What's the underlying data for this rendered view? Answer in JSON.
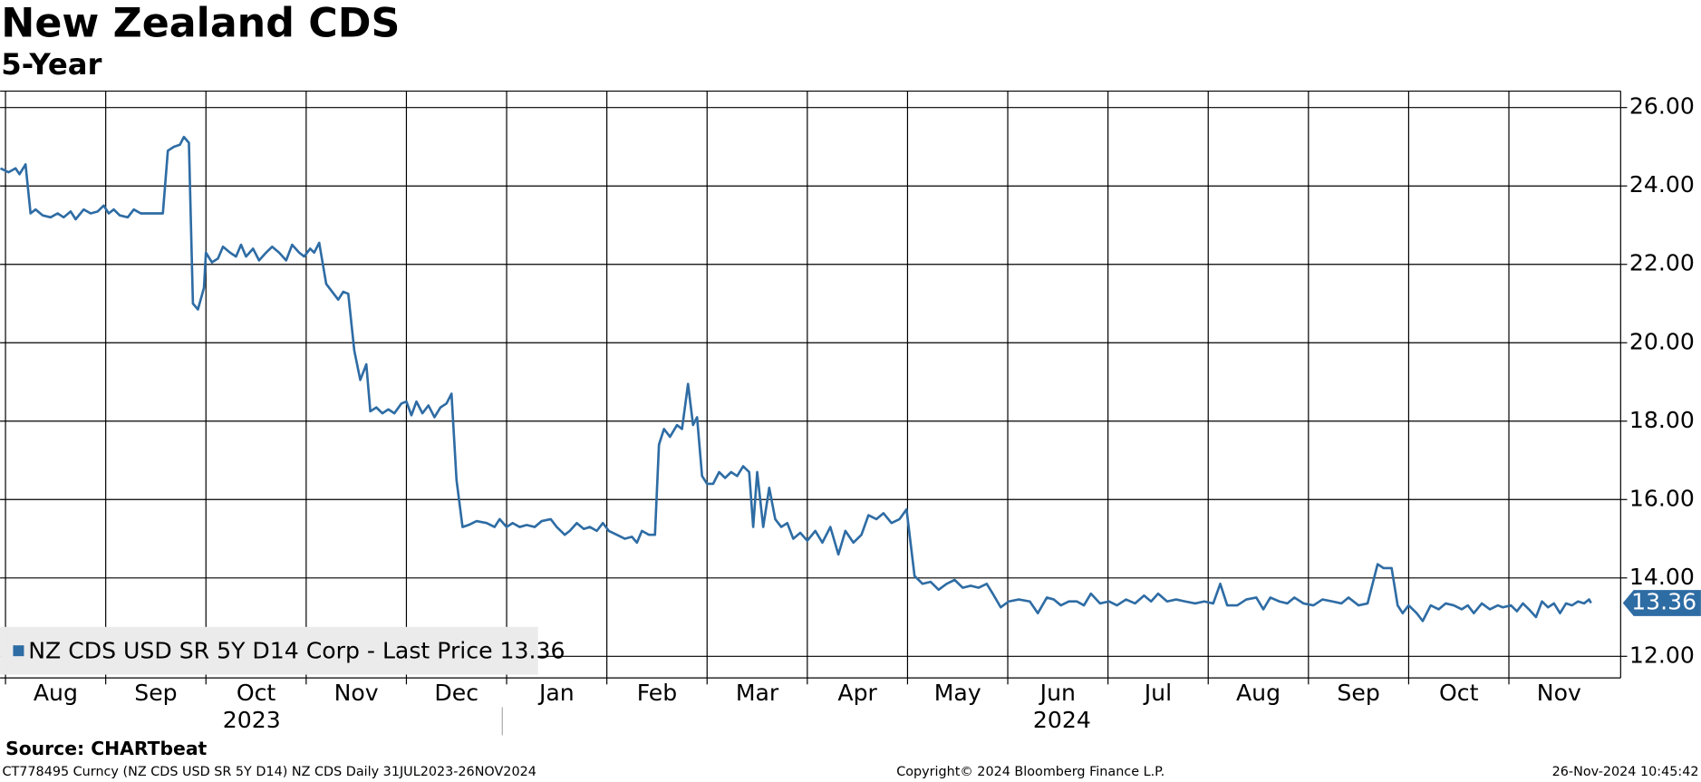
{
  "chart_data": {
    "type": "line",
    "title": "New Zealand CDS",
    "subtitle": "5-Year",
    "x": [
      -0.05,
      0.03,
      0.1,
      0.14,
      0.2,
      0.25,
      0.3,
      0.37,
      0.45,
      0.52,
      0.58,
      0.65,
      0.7,
      0.78,
      0.85,
      0.92,
      0.98,
      1.03,
      1.08,
      1.14,
      1.22,
      1.28,
      1.35,
      1.45,
      1.57,
      1.62,
      1.68,
      1.74,
      1.78,
      1.83,
      1.87,
      1.92,
      1.98,
      2.0,
      2.06,
      2.12,
      2.17,
      2.24,
      2.3,
      2.35,
      2.4,
      2.47,
      2.53,
      2.6,
      2.66,
      2.73,
      2.8,
      2.86,
      2.93,
      2.98,
      3.04,
      3.08,
      3.13,
      3.2,
      3.26,
      3.32,
      3.37,
      3.42,
      3.48,
      3.54,
      3.6,
      3.64,
      3.7,
      3.76,
      3.82,
      3.88,
      3.95,
      4.0,
      4.05,
      4.1,
      4.16,
      4.22,
      4.28,
      4.34,
      4.4,
      4.45,
      4.5,
      4.56,
      4.62,
      4.7,
      4.8,
      4.88,
      4.93,
      5.0,
      5.06,
      5.13,
      5.2,
      5.28,
      5.35,
      5.44,
      5.5,
      5.58,
      5.63,
      5.7,
      5.77,
      5.83,
      5.9,
      5.96,
      6.02,
      6.1,
      6.18,
      6.25,
      6.3,
      6.35,
      6.42,
      6.48,
      6.52,
      6.57,
      6.63,
      6.7,
      6.75,
      6.81,
      6.86,
      6.9,
      6.95,
      7.0,
      7.06,
      7.12,
      7.18,
      7.24,
      7.3,
      7.36,
      7.42,
      7.46,
      7.5,
      7.56,
      7.62,
      7.68,
      7.74,
      7.8,
      7.86,
      7.93,
      8.0,
      8.08,
      8.15,
      8.23,
      8.31,
      8.38,
      8.46,
      8.54,
      8.61,
      8.69,
      8.76,
      8.84,
      8.92,
      8.99,
      9.07,
      9.15,
      9.23,
      9.31,
      9.39,
      9.47,
      9.55,
      9.63,
      9.71,
      9.79,
      9.85,
      9.93,
      10.01,
      10.11,
      10.22,
      10.3,
      10.39,
      10.46,
      10.53,
      10.61,
      10.69,
      10.76,
      10.83,
      10.92,
      11.01,
      11.09,
      11.18,
      11.27,
      11.36,
      11.43,
      11.5,
      11.59,
      11.68,
      11.77,
      11.87,
      11.96,
      12.05,
      12.12,
      12.19,
      12.29,
      12.38,
      12.48,
      12.55,
      12.62,
      12.71,
      12.79,
      12.86,
      12.95,
      13.05,
      13.14,
      13.24,
      13.33,
      13.4,
      13.5,
      13.59,
      13.69,
      13.75,
      13.83,
      13.89,
      13.94,
      14.0,
      14.08,
      14.14,
      14.22,
      14.3,
      14.37,
      14.45,
      14.53,
      14.59,
      14.65,
      14.73,
      14.81,
      14.89,
      14.94,
      15.02,
      15.08,
      15.14,
      15.2,
      15.27,
      15.33,
      15.39,
      15.45,
      15.51,
      15.57,
      15.63,
      15.69,
      15.75,
      15.8,
      15.82
    ],
    "series": [
      {
        "name": "NZ CDS USD SR 5Y D14 Corp - Last Price 13.36",
        "color": "#2e6ca4",
        "values": [
          24.45,
          24.35,
          24.45,
          24.3,
          24.55,
          23.3,
          23.4,
          23.25,
          23.2,
          23.3,
          23.2,
          23.35,
          23.15,
          23.4,
          23.3,
          23.35,
          23.5,
          23.3,
          23.4,
          23.25,
          23.2,
          23.4,
          23.3,
          23.3,
          23.3,
          24.9,
          25.0,
          25.05,
          25.25,
          25.1,
          21.0,
          20.85,
          21.4,
          22.3,
          22.05,
          22.15,
          22.45,
          22.3,
          22.2,
          22.5,
          22.2,
          22.4,
          22.1,
          22.3,
          22.45,
          22.3,
          22.1,
          22.5,
          22.3,
          22.2,
          22.4,
          22.3,
          22.55,
          21.5,
          21.3,
          21.1,
          21.3,
          21.25,
          19.8,
          19.05,
          19.45,
          18.25,
          18.35,
          18.2,
          18.3,
          18.2,
          18.45,
          18.5,
          18.15,
          18.5,
          18.2,
          18.4,
          18.1,
          18.35,
          18.45,
          18.7,
          16.5,
          15.3,
          15.35,
          15.45,
          15.4,
          15.3,
          15.5,
          15.3,
          15.4,
          15.3,
          15.35,
          15.3,
          15.45,
          15.5,
          15.3,
          15.1,
          15.2,
          15.4,
          15.25,
          15.3,
          15.2,
          15.4,
          15.2,
          15.1,
          15.0,
          15.05,
          14.9,
          15.2,
          15.1,
          15.1,
          17.4,
          17.8,
          17.6,
          17.9,
          17.8,
          18.95,
          17.9,
          18.1,
          16.6,
          16.4,
          16.4,
          16.7,
          16.55,
          16.7,
          16.6,
          16.85,
          16.7,
          15.3,
          16.7,
          15.3,
          16.3,
          15.5,
          15.3,
          15.4,
          15.0,
          15.15,
          14.95,
          15.2,
          14.9,
          15.3,
          14.6,
          15.2,
          14.9,
          15.1,
          15.6,
          15.5,
          15.65,
          15.4,
          15.5,
          15.75,
          14.05,
          13.85,
          13.9,
          13.7,
          13.85,
          13.95,
          13.75,
          13.8,
          13.75,
          13.85,
          13.6,
          13.25,
          13.4,
          13.45,
          13.4,
          13.1,
          13.5,
          13.45,
          13.3,
          13.4,
          13.4,
          13.3,
          13.6,
          13.35,
          13.4,
          13.3,
          13.45,
          13.35,
          13.55,
          13.4,
          13.6,
          13.4,
          13.45,
          13.4,
          13.35,
          13.4,
          13.35,
          13.85,
          13.3,
          13.3,
          13.45,
          13.5,
          13.2,
          13.5,
          13.4,
          13.35,
          13.5,
          13.35,
          13.3,
          13.45,
          13.4,
          13.35,
          13.5,
          13.3,
          13.35,
          14.35,
          14.25,
          14.25,
          13.3,
          13.1,
          13.3,
          13.1,
          12.9,
          13.3,
          13.2,
          13.35,
          13.3,
          13.2,
          13.3,
          13.1,
          13.35,
          13.2,
          13.3,
          13.25,
          13.3,
          13.15,
          13.35,
          13.2,
          13.0,
          13.4,
          13.25,
          13.35,
          13.1,
          13.35,
          13.3,
          13.4,
          13.35,
          13.45,
          13.36
        ]
      }
    ],
    "last_price_label": "13.36",
    "xlim": [
      -0.054,
      16.115
    ],
    "ylim": [
      11.45,
      26.42
    ],
    "xticks": [
      {
        "value": 0,
        "label": "Aug"
      },
      {
        "value": 1,
        "label": "Sep"
      },
      {
        "value": 2,
        "label": "Oct"
      },
      {
        "value": 3,
        "label": "Nov"
      },
      {
        "value": 4,
        "label": "Dec"
      },
      {
        "value": 5,
        "label": "Jan"
      },
      {
        "value": 6,
        "label": "Feb"
      },
      {
        "value": 7,
        "label": "Mar"
      },
      {
        "value": 8,
        "label": "Apr"
      },
      {
        "value": 9,
        "label": "May"
      },
      {
        "value": 10,
        "label": "Jun"
      },
      {
        "value": 11,
        "label": "Jul"
      },
      {
        "value": 12,
        "label": "Aug"
      },
      {
        "value": 13,
        "label": "Sep"
      },
      {
        "value": 14,
        "label": "Oct"
      },
      {
        "value": 15,
        "label": "Nov"
      }
    ],
    "years": [
      "2023",
      "2024"
    ],
    "yticks": [
      {
        "value": 12,
        "label": "12.00"
      },
      {
        "value": 14,
        "label": "14.00"
      },
      {
        "value": 16,
        "label": "16.00"
      },
      {
        "value": 18,
        "label": "18.00"
      },
      {
        "value": 20,
        "label": "20.00"
      },
      {
        "value": 22,
        "label": "22.00"
      },
      {
        "value": 24,
        "label": "24.00"
      },
      {
        "value": 26,
        "label": "26.00"
      }
    ],
    "grid": true
  },
  "footer": {
    "source": "Source: CHARTbeat",
    "description": "CT778495 Curncy (NZ CDS USD SR 5Y D14) NZ CDS  Daily 31JUL2023-26NOV2024",
    "copyright": "Copyright© 2024 Bloomberg Finance L.P.",
    "timestamp": "26-Nov-2024 10:45:42"
  }
}
